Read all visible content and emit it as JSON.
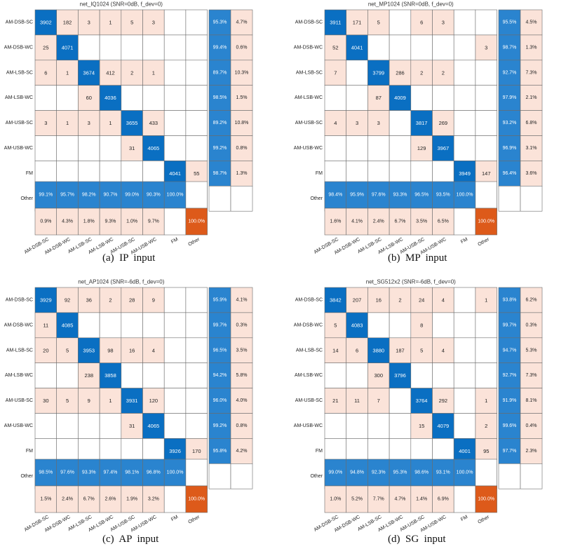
{
  "figure": {
    "row_labels": [
      "AM-DSB-SC",
      "AM-DSB-WC",
      "AM-LSB-SC",
      "AM-LSB-WC",
      "AM-USB-SC",
      "AM-USB-WC",
      "FM",
      "Other"
    ],
    "col_labels": [
      "AM-DSB-SC",
      "AM-DSB-WC",
      "AM-LSB-SC",
      "AM-LSB-WC",
      "AM-USB-SC",
      "AM-USB-WC",
      "FM",
      "Other"
    ],
    "colors": {
      "dark_blue": "#0a6fc2",
      "light_blue": "#2a84cf",
      "pale_salmon": "#fbe3d9",
      "salmon": "#f6c7b4",
      "orange": "#dd5a1a"
    }
  },
  "chart_data": [
    {
      "type": "heatmap",
      "title": "net_IQ1024 (SNR=0dB, f_dev=0)",
      "caption": "(a)  IP  input",
      "matrix": [
        [
          3902,
          182,
          3,
          1,
          5,
          3,
          null,
          null
        ],
        [
          25,
          4071,
          null,
          null,
          null,
          null,
          null,
          null
        ],
        [
          6,
          1,
          3674,
          412,
          2,
          1,
          null,
          null
        ],
        [
          null,
          null,
          60,
          4036,
          null,
          null,
          null,
          null
        ],
        [
          3,
          1,
          3,
          1,
          3655,
          433,
          null,
          null
        ],
        [
          null,
          null,
          null,
          null,
          31,
          4065,
          null,
          null
        ],
        [
          null,
          null,
          null,
          null,
          null,
          null,
          4041,
          55
        ],
        [
          null,
          null,
          null,
          null,
          null,
          null,
          null,
          null
        ]
      ],
      "row_summary": [
        [
          "95.3%",
          "4.7%"
        ],
        [
          "99.4%",
          "0.6%"
        ],
        [
          "89.7%",
          "10.3%"
        ],
        [
          "98.5%",
          "1.5%"
        ],
        [
          "89.2%",
          "10.8%"
        ],
        [
          "99.2%",
          "0.8%"
        ],
        [
          "98.7%",
          "1.3%"
        ],
        [
          "",
          ""
        ]
      ],
      "col_summary_top": [
        "99.1%",
        "95.7%",
        "98.2%",
        "90.7%",
        "99.0%",
        "90.3%",
        "100.0%",
        ""
      ],
      "col_summary_bottom": [
        "0.9%",
        "4.3%",
        "1.8%",
        "9.3%",
        "1.0%",
        "9.7%",
        "",
        "100.0%"
      ]
    },
    {
      "type": "heatmap",
      "title": "net_MP1024 (SNR=0dB, f_dev=0)",
      "caption": "(b)  MP  input",
      "matrix": [
        [
          3911,
          171,
          5,
          null,
          6,
          3,
          null,
          null
        ],
        [
          52,
          4041,
          null,
          null,
          null,
          null,
          null,
          3
        ],
        [
          7,
          null,
          3799,
          286,
          2,
          2,
          null,
          null
        ],
        [
          null,
          null,
          87,
          4009,
          null,
          null,
          null,
          null
        ],
        [
          4,
          3,
          3,
          null,
          3817,
          269,
          null,
          null
        ],
        [
          null,
          null,
          null,
          null,
          129,
          3967,
          null,
          null
        ],
        [
          null,
          null,
          null,
          null,
          null,
          null,
          3949,
          147
        ],
        [
          null,
          null,
          null,
          null,
          null,
          null,
          null,
          null
        ]
      ],
      "row_summary": [
        [
          "95.5%",
          "4.5%"
        ],
        [
          "98.7%",
          "1.3%"
        ],
        [
          "92.7%",
          "7.3%"
        ],
        [
          "97.9%",
          "2.1%"
        ],
        [
          "93.2%",
          "6.8%"
        ],
        [
          "96.9%",
          "3.1%"
        ],
        [
          "96.4%",
          "3.6%"
        ],
        [
          "",
          ""
        ]
      ],
      "col_summary_top": [
        "98.4%",
        "95.9%",
        "97.6%",
        "93.3%",
        "96.5%",
        "93.5%",
        "100.0%",
        ""
      ],
      "col_summary_bottom": [
        "1.6%",
        "4.1%",
        "2.4%",
        "6.7%",
        "3.5%",
        "6.5%",
        "",
        "100.0%"
      ]
    },
    {
      "type": "heatmap",
      "title": "net_AP1024 (SNR=-6dB, f_dev=0)",
      "caption": "(c)  AP  input",
      "matrix": [
        [
          3929,
          92,
          36,
          2,
          28,
          9,
          null,
          null
        ],
        [
          11,
          4085,
          null,
          null,
          null,
          null,
          null,
          null
        ],
        [
          20,
          5,
          3953,
          98,
          16,
          4,
          null,
          null
        ],
        [
          null,
          null,
          238,
          3858,
          null,
          null,
          null,
          null
        ],
        [
          30,
          5,
          9,
          1,
          3931,
          120,
          null,
          null
        ],
        [
          null,
          null,
          null,
          null,
          31,
          4065,
          null,
          null
        ],
        [
          null,
          null,
          null,
          null,
          null,
          null,
          3926,
          170
        ],
        [
          null,
          null,
          null,
          null,
          null,
          null,
          null,
          null
        ]
      ],
      "row_summary": [
        [
          "95.9%",
          "4.1%"
        ],
        [
          "99.7%",
          "0.3%"
        ],
        [
          "96.5%",
          "3.5%"
        ],
        [
          "94.2%",
          "5.8%"
        ],
        [
          "96.0%",
          "4.0%"
        ],
        [
          "99.2%",
          "0.8%"
        ],
        [
          "95.8%",
          "4.2%"
        ],
        [
          "",
          ""
        ]
      ],
      "col_summary_top": [
        "98.5%",
        "97.6%",
        "93.3%",
        "97.4%",
        "98.1%",
        "96.8%",
        "100.0%",
        ""
      ],
      "col_summary_bottom": [
        "1.5%",
        "2.4%",
        "6.7%",
        "2.6%",
        "1.9%",
        "3.2%",
        "",
        "100.0%"
      ]
    },
    {
      "type": "heatmap",
      "title": "net_SG512x2 (SNR=-6dB, f_dev=0)",
      "caption": "(d)  SG  input",
      "matrix": [
        [
          3842,
          207,
          16,
          2,
          24,
          4,
          null,
          1
        ],
        [
          5,
          4083,
          null,
          null,
          8,
          null,
          null,
          null
        ],
        [
          14,
          6,
          3880,
          187,
          5,
          4,
          null,
          null
        ],
        [
          null,
          null,
          300,
          3796,
          null,
          null,
          null,
          null
        ],
        [
          21,
          11,
          7,
          null,
          3764,
          292,
          null,
          1
        ],
        [
          null,
          null,
          null,
          null,
          15,
          4079,
          null,
          2
        ],
        [
          null,
          null,
          null,
          null,
          null,
          null,
          4001,
          95
        ],
        [
          null,
          null,
          null,
          null,
          null,
          null,
          null,
          null
        ]
      ],
      "row_summary": [
        [
          "93.8%",
          "6.2%"
        ],
        [
          "99.7%",
          "0.3%"
        ],
        [
          "94.7%",
          "5.3%"
        ],
        [
          "92.7%",
          "7.3%"
        ],
        [
          "91.9%",
          "8.1%"
        ],
        [
          "99.6%",
          "0.4%"
        ],
        [
          "97.7%",
          "2.3%"
        ],
        [
          "",
          ""
        ]
      ],
      "col_summary_top": [
        "99.0%",
        "94.8%",
        "92.3%",
        "95.3%",
        "98.6%",
        "93.1%",
        "100.0%",
        ""
      ],
      "col_summary_bottom": [
        "1.0%",
        "5.2%",
        "7.7%",
        "4.7%",
        "1.4%",
        "6.9%",
        "",
        "100.0%"
      ]
    }
  ]
}
